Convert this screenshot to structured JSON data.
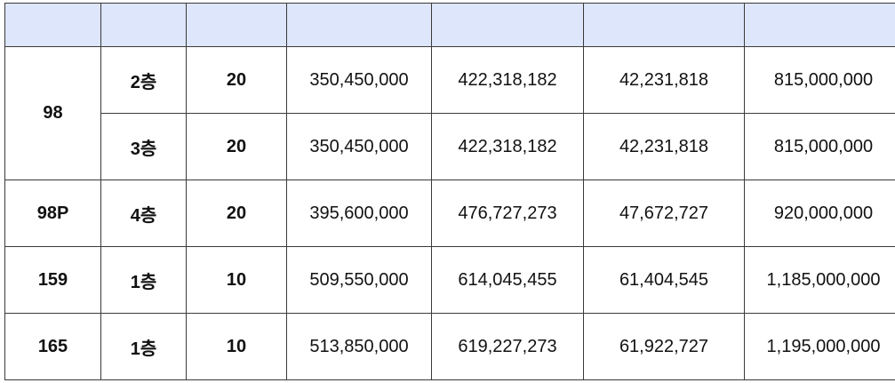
{
  "table": {
    "header": [
      "",
      "",
      "",
      "",
      "",
      "",
      ""
    ],
    "rows": [
      {
        "type": "98",
        "floor": "2층",
        "units": "20",
        "v1": "350,450,000",
        "v2": "422,318,182",
        "v3": "42,231,818",
        "total": "815,000,000"
      },
      {
        "floor": "3층",
        "units": "20",
        "v1": "350,450,000",
        "v2": "422,318,182",
        "v3": "42,231,818",
        "total": "815,000,000"
      },
      {
        "type": "98P",
        "floor": "4층",
        "units": "20",
        "v1": "395,600,000",
        "v2": "476,727,273",
        "v3": "47,672,727",
        "total": "920,000,000"
      },
      {
        "type": "159",
        "floor": "1층",
        "units": "10",
        "v1": "509,550,000",
        "v2": "614,045,455",
        "v3": "61,404,545",
        "total": "1,185,000,000"
      },
      {
        "type": "165",
        "floor": "1층",
        "units": "10",
        "v1": "513,850,000",
        "v2": "619,227,273",
        "v3": "61,922,727",
        "total": "1,195,000,000"
      }
    ]
  },
  "colors": {
    "header_bg": "#dde6fb",
    "border": "#3a3a3a"
  }
}
